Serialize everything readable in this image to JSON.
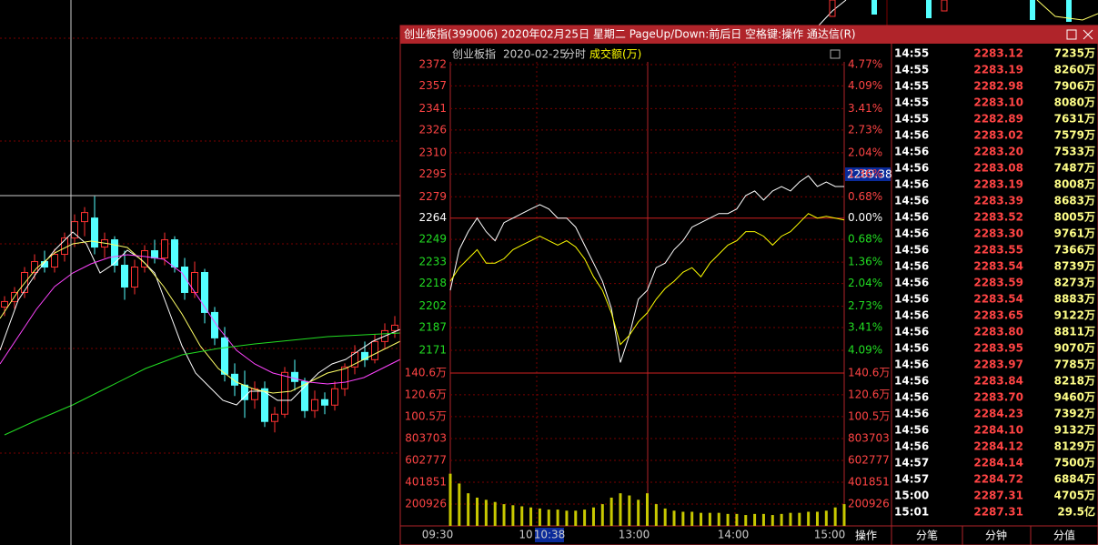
{
  "window": {
    "title": "创业板指(399006) 2020年02月25日 星期二 PageUp/Down:前后日 空格键:操作 通达信(R)"
  },
  "chart_data": [
    {
      "type": "line",
      "title": "创业板指",
      "date": "2020-02-25",
      "mode": "分时",
      "volume_label": "成交额(万)",
      "ylim": [
        2171,
        2372
      ],
      "yticks": [
        2372,
        2357,
        2341,
        2326,
        2310,
        2295,
        2279,
        2264,
        2249,
        2233,
        2218,
        2202,
        2187,
        2171
      ],
      "pct_labels": [
        "4.77%",
        "4.09%",
        "3.41%",
        "2.73%",
        "2.04%",
        "1.36%",
        "0.68%",
        "0.00%",
        "0.68%",
        "1.36%",
        "2.04%",
        "2.73%",
        "3.41%",
        "4.09%"
      ],
      "last_price_label": "2289.38",
      "series": [
        {
          "color": "#ffffff",
          "values": [
            2213.2,
            2241.8,
            2254.5,
            2264,
            2254.5,
            2248.1,
            2260.8,
            2264,
            2267.2,
            2270.4,
            2273.5,
            2270.4,
            2264,
            2264,
            2257.7,
            2245,
            2232.3,
            2219.5,
            2200.5,
            2162.4,
            2181.5,
            2206.9,
            2213.2,
            2229.1,
            2232.3,
            2241.8,
            2248.1,
            2257.7,
            2260.8,
            2264,
            2267.2,
            2267.2,
            2270.4,
            2279.9,
            2283.1,
            2276.7,
            2283.1,
            2286.2,
            2283.1,
            2289.4,
            2293.8,
            2286.2,
            2289.4,
            2286.2,
            2286.2
          ]
        },
        {
          "color": "#ffff00",
          "values": [
            2219.6,
            2229.1,
            2235.4,
            2241.8,
            2232.3,
            2232.3,
            2235.4,
            2241.8,
            2245,
            2248.1,
            2251.3,
            2248.1,
            2245,
            2248.1,
            2243.7,
            2235.4,
            2222.7,
            2213.2,
            2197.3,
            2175.1,
            2181.5,
            2191,
            2197.3,
            2206.9,
            2214.5,
            2219.6,
            2225.9,
            2229.1,
            2222.7,
            2232.3,
            2238.6,
            2245,
            2248.1,
            2254.5,
            2254.5,
            2251.3,
            2245,
            2251.3,
            2254.5,
            2260.8,
            2267.2,
            2264,
            2265.3,
            2264,
            2262.7
          ]
        }
      ],
      "volume": {
        "color": "#c8c800",
        "vlim": [
          0,
          1406000
        ],
        "vticks": [
          {
            "value": 1406000,
            "label": "140.6万"
          },
          {
            "value": 1206000,
            "label": "120.6万"
          },
          {
            "value": 1005000,
            "label": "100.5万"
          },
          803703,
          602777,
          401851,
          200926
        ],
        "values": [
          480000,
          390000,
          300000,
          260000,
          240000,
          220000,
          200000,
          190000,
          180000,
          170000,
          160000,
          150000,
          150000,
          140000,
          140000,
          150000,
          170000,
          200000,
          260000,
          300000,
          280000,
          240000,
          300000,
          200000,
          160000,
          140000,
          130000,
          130000,
          120000,
          120000,
          120000,
          110000,
          110000,
          100000,
          110000,
          110000,
          100000,
          110000,
          120000,
          120000,
          130000,
          130000,
          140000,
          170000,
          200000
        ]
      },
      "time_labels": [
        "09:30",
        "10",
        "10:38",
        "13:00",
        "14:00",
        "15:00"
      ]
    },
    {
      "type": "candlestick",
      "ylim": [
        2050,
        2350
      ],
      "up_color": "#ff3232",
      "down_color": "#54ffff",
      "candles": [
        [
          2181,
          2187,
          2176,
          2184
        ],
        [
          2184,
          2192,
          2180,
          2189
        ],
        [
          2189,
          2203,
          2186,
          2200
        ],
        [
          2200,
          2210,
          2196,
          2206
        ],
        [
          2206,
          2212,
          2200,
          2203
        ],
        [
          2203,
          2213,
          2200,
          2210
        ],
        [
          2210,
          2222,
          2206,
          2219
        ],
        [
          2219,
          2232,
          2214,
          2228
        ],
        [
          2228,
          2236,
          2220,
          2233
        ],
        [
          2230,
          2242,
          2210,
          2214
        ],
        [
          2214,
          2222,
          2208,
          2218
        ],
        [
          2218,
          2220,
          2200,
          2204
        ],
        [
          2204,
          2212,
          2185,
          2192
        ],
        [
          2192,
          2207,
          2188,
          2203
        ],
        [
          2203,
          2215,
          2200,
          2212
        ],
        [
          2212,
          2218,
          2205,
          2208
        ],
        [
          2208,
          2222,
          2204,
          2218
        ],
        [
          2218,
          2220,
          2200,
          2203
        ],
        [
          2203,
          2208,
          2185,
          2189
        ],
        [
          2189,
          2206,
          2186,
          2200
        ],
        [
          2200,
          2202,
          2172,
          2178
        ],
        [
          2178,
          2181,
          2160,
          2164
        ],
        [
          2164,
          2170,
          2140,
          2144
        ],
        [
          2144,
          2150,
          2132,
          2138
        ],
        [
          2138,
          2146,
          2120,
          2130
        ],
        [
          2130,
          2140,
          2125,
          2136
        ],
        [
          2136,
          2140,
          2115,
          2118
        ],
        [
          2118,
          2126,
          2112,
          2122
        ],
        [
          2122,
          2148,
          2120,
          2145
        ],
        [
          2145,
          2152,
          2135,
          2140
        ],
        [
          2140,
          2142,
          2120,
          2124
        ],
        [
          2124,
          2135,
          2120,
          2130
        ],
        [
          2130,
          2134,
          2122,
          2127
        ],
        [
          2127,
          2140,
          2124,
          2136
        ],
        [
          2136,
          2150,
          2132,
          2148
        ],
        [
          2148,
          2160,
          2144,
          2156
        ],
        [
          2156,
          2162,
          2148,
          2152
        ],
        [
          2152,
          2166,
          2150,
          2162
        ],
        [
          2162,
          2172,
          2158,
          2168
        ],
        [
          2168,
          2176,
          2164,
          2171
        ]
      ]
    }
  ],
  "table": {
    "rows": [
      [
        "14:55",
        "2283.12",
        "7235万"
      ],
      [
        "14:55",
        "2283.19",
        "8260万"
      ],
      [
        "14:55",
        "2282.98",
        "7906万"
      ],
      [
        "14:55",
        "2283.10",
        "8080万"
      ],
      [
        "14:55",
        "2282.89",
        "7631万"
      ],
      [
        "14:56",
        "2283.02",
        "7579万"
      ],
      [
        "14:56",
        "2283.20",
        "7533万"
      ],
      [
        "14:56",
        "2283.08",
        "7487万"
      ],
      [
        "14:56",
        "2283.19",
        "8008万"
      ],
      [
        "14:56",
        "2283.39",
        "8683万"
      ],
      [
        "14:56",
        "2283.52",
        "8005万"
      ],
      [
        "14:56",
        "2283.30",
        "9761万"
      ],
      [
        "14:56",
        "2283.55",
        "7366万"
      ],
      [
        "14:56",
        "2283.54",
        "8739万"
      ],
      [
        "14:56",
        "2283.59",
        "8273万"
      ],
      [
        "14:56",
        "2283.54",
        "8883万"
      ],
      [
        "14:56",
        "2283.65",
        "9122万"
      ],
      [
        "14:56",
        "2283.80",
        "8811万"
      ],
      [
        "14:56",
        "2283.95",
        "9070万"
      ],
      [
        "14:56",
        "2283.97",
        "7785万"
      ],
      [
        "14:56",
        "2283.84",
        "8218万"
      ],
      [
        "14:56",
        "2283.70",
        "9460万"
      ],
      [
        "14:56",
        "2284.23",
        "7392万"
      ],
      [
        "14:56",
        "2284.10",
        "9132万"
      ],
      [
        "14:56",
        "2284.12",
        "8129万"
      ],
      [
        "14:57",
        "2284.14",
        "7500万"
      ],
      [
        "14:57",
        "2284.72",
        "6884万"
      ],
      [
        "15:00",
        "2287.31",
        "4705万"
      ],
      [
        "15:01",
        "2287.31",
        "29.5亿"
      ]
    ]
  },
  "tabs": [
    "操作",
    "分笔",
    "分钟",
    "分值"
  ]
}
